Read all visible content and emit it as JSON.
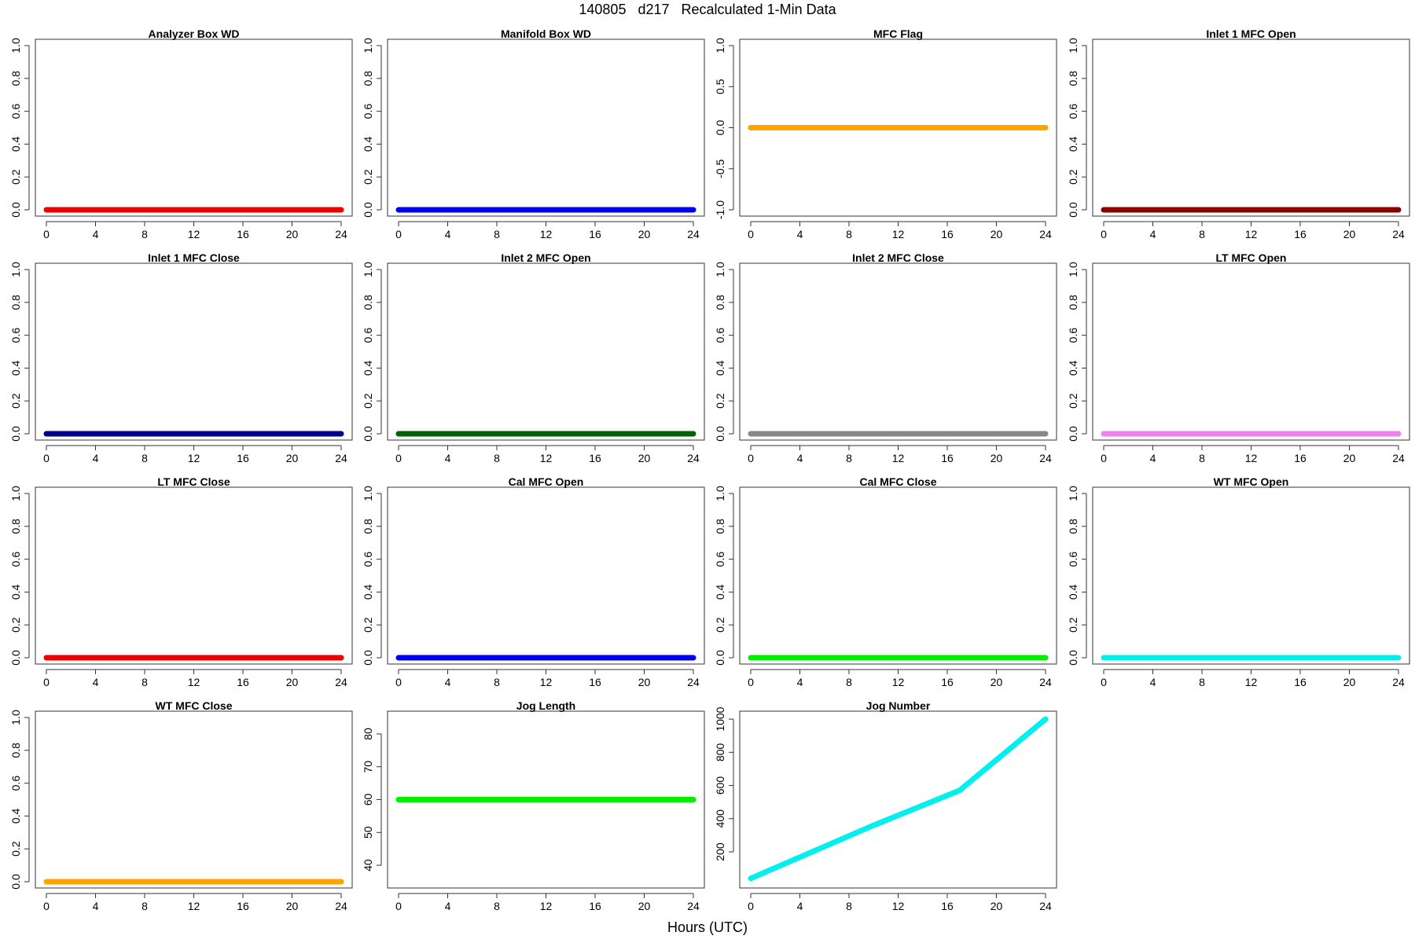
{
  "page": {
    "title": "140805   d217   Recalculated 1-Min Data",
    "x_axis_title": "Hours (UTC)"
  },
  "chart_data": [
    {
      "type": "line",
      "title": "Analyzer Box WD",
      "color": "#ee0000",
      "x": [
        0,
        24
      ],
      "values": [
        0,
        0
      ],
      "xlim": [
        0,
        24
      ],
      "ylim": [
        0,
        1
      ],
      "xticks": [
        0,
        4,
        8,
        12,
        16,
        20,
        24
      ],
      "yticks": [
        0,
        0.2,
        0.4,
        0.6,
        0.8,
        1
      ],
      "ytick_labels": [
        "0.0",
        "0.2",
        "0.4",
        "0.6",
        "0.8",
        "1.0"
      ]
    },
    {
      "type": "line",
      "title": "Manifold Box WD",
      "color": "#0000ee",
      "x": [
        0,
        24
      ],
      "values": [
        0,
        0
      ],
      "xlim": [
        0,
        24
      ],
      "ylim": [
        0,
        1
      ],
      "xticks": [
        0,
        4,
        8,
        12,
        16,
        20,
        24
      ],
      "yticks": [
        0,
        0.2,
        0.4,
        0.6,
        0.8,
        1
      ],
      "ytick_labels": [
        "0.0",
        "0.2",
        "0.4",
        "0.6",
        "0.8",
        "1.0"
      ]
    },
    {
      "type": "line",
      "title": "MFC Flag",
      "color": "#ffa500",
      "x": [
        0,
        24
      ],
      "values": [
        0,
        0
      ],
      "xlim": [
        0,
        24
      ],
      "ylim": [
        -1,
        1
      ],
      "xticks": [
        0,
        4,
        8,
        12,
        16,
        20,
        24
      ],
      "yticks": [
        -1,
        -0.5,
        0,
        0.5,
        1
      ],
      "ytick_labels": [
        "-1.0",
        "-0.5",
        "0.0",
        "0.5",
        "1.0"
      ]
    },
    {
      "type": "line",
      "title": "Inlet 1 MFC Open",
      "color": "#8b0000",
      "x": [
        0,
        24
      ],
      "values": [
        0,
        0
      ],
      "xlim": [
        0,
        24
      ],
      "ylim": [
        0,
        1
      ],
      "xticks": [
        0,
        4,
        8,
        12,
        16,
        20,
        24
      ],
      "yticks": [
        0,
        0.2,
        0.4,
        0.6,
        0.8,
        1
      ],
      "ytick_labels": [
        "0.0",
        "0.2",
        "0.4",
        "0.6",
        "0.8",
        "1.0"
      ]
    },
    {
      "type": "line",
      "title": "Inlet 1 MFC Close",
      "color": "#00008b",
      "x": [
        0,
        24
      ],
      "values": [
        0,
        0
      ],
      "xlim": [
        0,
        24
      ],
      "ylim": [
        0,
        1
      ],
      "xticks": [
        0,
        4,
        8,
        12,
        16,
        20,
        24
      ],
      "yticks": [
        0,
        0.2,
        0.4,
        0.6,
        0.8,
        1
      ],
      "ytick_labels": [
        "0.0",
        "0.2",
        "0.4",
        "0.6",
        "0.8",
        "1.0"
      ]
    },
    {
      "type": "line",
      "title": "Inlet 2 MFC Open",
      "color": "#006400",
      "x": [
        0,
        24
      ],
      "values": [
        0,
        0
      ],
      "xlim": [
        0,
        24
      ],
      "ylim": [
        0,
        1
      ],
      "xticks": [
        0,
        4,
        8,
        12,
        16,
        20,
        24
      ],
      "yticks": [
        0,
        0.2,
        0.4,
        0.6,
        0.8,
        1
      ],
      "ytick_labels": [
        "0.0",
        "0.2",
        "0.4",
        "0.6",
        "0.8",
        "1.0"
      ]
    },
    {
      "type": "line",
      "title": "Inlet 2 MFC Close",
      "color": "#888888",
      "x": [
        0,
        24
      ],
      "values": [
        0,
        0
      ],
      "xlim": [
        0,
        24
      ],
      "ylim": [
        0,
        1
      ],
      "xticks": [
        0,
        4,
        8,
        12,
        16,
        20,
        24
      ],
      "yticks": [
        0,
        0.2,
        0.4,
        0.6,
        0.8,
        1
      ],
      "ytick_labels": [
        "0.0",
        "0.2",
        "0.4",
        "0.6",
        "0.8",
        "1.0"
      ]
    },
    {
      "type": "line",
      "title": "LT MFC Open",
      "color": "#ee82ee",
      "x": [
        0,
        24
      ],
      "values": [
        0,
        0
      ],
      "xlim": [
        0,
        24
      ],
      "ylim": [
        0,
        1
      ],
      "xticks": [
        0,
        4,
        8,
        12,
        16,
        20,
        24
      ],
      "yticks": [
        0,
        0.2,
        0.4,
        0.6,
        0.8,
        1
      ],
      "ytick_labels": [
        "0.0",
        "0.2",
        "0.4",
        "0.6",
        "0.8",
        "1.0"
      ]
    },
    {
      "type": "line",
      "title": "LT MFC Close",
      "color": "#ee0000",
      "x": [
        0,
        24
      ],
      "values": [
        0,
        0
      ],
      "xlim": [
        0,
        24
      ],
      "ylim": [
        0,
        1
      ],
      "xticks": [
        0,
        4,
        8,
        12,
        16,
        20,
        24
      ],
      "yticks": [
        0,
        0.2,
        0.4,
        0.6,
        0.8,
        1
      ],
      "ytick_labels": [
        "0.0",
        "0.2",
        "0.4",
        "0.6",
        "0.8",
        "1.0"
      ]
    },
    {
      "type": "line",
      "title": "Cal MFC Open",
      "color": "#0000ee",
      "x": [
        0,
        24
      ],
      "values": [
        0,
        0
      ],
      "xlim": [
        0,
        24
      ],
      "ylim": [
        0,
        1
      ],
      "xticks": [
        0,
        4,
        8,
        12,
        16,
        20,
        24
      ],
      "yticks": [
        0,
        0.2,
        0.4,
        0.6,
        0.8,
        1
      ],
      "ytick_labels": [
        "0.0",
        "0.2",
        "0.4",
        "0.6",
        "0.8",
        "1.0"
      ]
    },
    {
      "type": "line",
      "title": "Cal MFC Close",
      "color": "#00ee00",
      "x": [
        0,
        24
      ],
      "values": [
        0,
        0
      ],
      "xlim": [
        0,
        24
      ],
      "ylim": [
        0,
        1
      ],
      "xticks": [
        0,
        4,
        8,
        12,
        16,
        20,
        24
      ],
      "yticks": [
        0,
        0.2,
        0.4,
        0.6,
        0.8,
        1
      ],
      "ytick_labels": [
        "0.0",
        "0.2",
        "0.4",
        "0.6",
        "0.8",
        "1.0"
      ]
    },
    {
      "type": "line",
      "title": "WT MFC Open",
      "color": "#00eeee",
      "x": [
        0,
        24
      ],
      "values": [
        0,
        0
      ],
      "xlim": [
        0,
        24
      ],
      "ylim": [
        0,
        1
      ],
      "xticks": [
        0,
        4,
        8,
        12,
        16,
        20,
        24
      ],
      "yticks": [
        0,
        0.2,
        0.4,
        0.6,
        0.8,
        1
      ],
      "ytick_labels": [
        "0.0",
        "0.2",
        "0.4",
        "0.6",
        "0.8",
        "1.0"
      ]
    },
    {
      "type": "line",
      "title": "WT MFC Close",
      "color": "#ffa500",
      "x": [
        0,
        24
      ],
      "values": [
        0,
        0
      ],
      "xlim": [
        0,
        24
      ],
      "ylim": [
        0,
        1
      ],
      "xticks": [
        0,
        4,
        8,
        12,
        16,
        20,
        24
      ],
      "yticks": [
        0,
        0.2,
        0.4,
        0.6,
        0.8,
        1
      ],
      "ytick_labels": [
        "0.0",
        "0.2",
        "0.4",
        "0.6",
        "0.8",
        "1.0"
      ]
    },
    {
      "type": "line",
      "title": "Jog Length",
      "color": "#00ee00",
      "x": [
        0,
        24
      ],
      "values": [
        60,
        60
      ],
      "xlim": [
        0,
        24
      ],
      "ylim": [
        35,
        85
      ],
      "xticks": [
        0,
        4,
        8,
        12,
        16,
        20,
        24
      ],
      "yticks": [
        40,
        50,
        60,
        70,
        80
      ],
      "ytick_labels": [
        "40",
        "50",
        "60",
        "70",
        "80"
      ]
    },
    {
      "type": "line",
      "title": "Jog Number",
      "color": "#00f0f0",
      "x": [
        0,
        10,
        17,
        24
      ],
      "values": [
        40,
        360,
        570,
        1000
      ],
      "xlim": [
        0,
        24
      ],
      "ylim": [
        20,
        1010
      ],
      "xticks": [
        0,
        4,
        8,
        12,
        16,
        20,
        24
      ],
      "yticks": [
        200,
        400,
        600,
        800,
        1000
      ],
      "ytick_labels": [
        "200",
        "400",
        "600",
        "800",
        "1000"
      ]
    }
  ]
}
